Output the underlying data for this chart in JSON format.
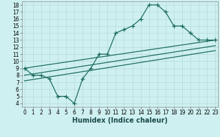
{
  "xlabel": "Humidex (Indice chaleur)",
  "bg_color": "#cff0f0",
  "line_color": "#1a6b5a",
  "grid_color": "#b8dede",
  "curve_x": [
    0,
    1,
    2,
    3,
    4,
    5,
    6,
    7,
    8,
    9,
    10,
    11,
    12,
    13,
    14,
    15,
    16,
    17,
    18,
    19,
    20,
    21,
    22,
    23
  ],
  "curve_y": [
    9,
    8,
    8,
    7.5,
    5,
    5,
    4,
    7.5,
    9,
    11,
    11,
    14,
    14.5,
    15,
    16,
    18,
    18,
    17,
    15,
    15,
    14,
    13,
    13,
    13
  ],
  "line1_x": [
    0,
    23
  ],
  "line1_y": [
    9.0,
    13.0
  ],
  "line2_x": [
    0,
    23
  ],
  "line2_y": [
    8.0,
    12.2
  ],
  "line3_x": [
    0,
    23
  ],
  "line3_y": [
    7.2,
    11.5
  ],
  "xlim": [
    -0.3,
    23.3
  ],
  "ylim": [
    3.5,
    18.5
  ],
  "yticks": [
    4,
    5,
    6,
    7,
    8,
    9,
    10,
    11,
    12,
    13,
    14,
    15,
    16,
    17,
    18
  ],
  "xticks": [
    0,
    1,
    2,
    3,
    4,
    5,
    6,
    7,
    8,
    9,
    10,
    11,
    12,
    13,
    14,
    15,
    16,
    17,
    18,
    19,
    20,
    21,
    22,
    23
  ],
  "markersize": 4,
  "linewidth": 0.9,
  "tick_fontsize": 5.5,
  "xlabel_fontsize": 7
}
